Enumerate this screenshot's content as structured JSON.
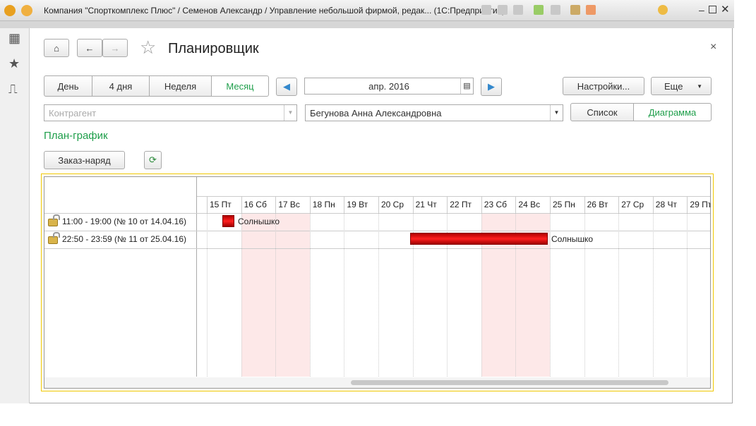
{
  "window": {
    "title": "Компания \"Спорткомплекс Плюс\" / Семенов Александр / Управление небольшой фирмой, редак...  (1С:Предприятие)"
  },
  "page": {
    "title": "Планировщик",
    "close": "×"
  },
  "periods": [
    {
      "label": "День"
    },
    {
      "label": "4 дня"
    },
    {
      "label": "Неделя"
    },
    {
      "label": "Месяц",
      "active": true
    }
  ],
  "period_value": "апр. 2016",
  "settings_label": "Настройки...",
  "more_label": "Еще",
  "counterparty": {
    "placeholder": "Контрагент",
    "value": ""
  },
  "employee": {
    "value": "Бегунова Анна Александровна"
  },
  "view_modes": [
    {
      "label": "Список"
    },
    {
      "label": "Диаграмма",
      "active": true
    }
  ],
  "section_title": "План-график",
  "order_button": "Заказ-наряд",
  "accent_color": "#1e9e4a",
  "gantt": {
    "days": [
      "15 Пт",
      "16 Сб",
      "17 Вс",
      "18 Пн",
      "19 Вт",
      "20 Ср",
      "21 Чт",
      "22 Пт",
      "23 Сб",
      "24 Вс",
      "25 Пн",
      "26 Вт",
      "27 Ср",
      "28 Чт",
      "29 Пт"
    ],
    "weekend_days": [
      "16 Сб",
      "17 Вс",
      "23 Сб",
      "24 Вс"
    ],
    "rows": [
      {
        "label": "11:00 - 19:00 (№ 10 от 14.04.16)",
        "bar_label": "Солнышко",
        "start": "15.04.16",
        "end": "15.04.16"
      },
      {
        "label": "22:50 - 23:59 (№ 11 от 25.04.16)",
        "bar_label": "Солнышко",
        "start": "21.04.16",
        "end": "25.04.16"
      }
    ]
  }
}
